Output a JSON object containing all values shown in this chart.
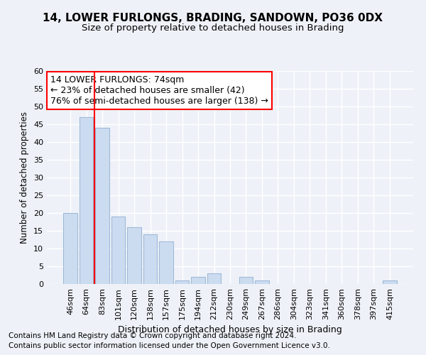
{
  "title1": "14, LOWER FURLONGS, BRADING, SANDOWN, PO36 0DX",
  "title2": "Size of property relative to detached houses in Brading",
  "xlabel": "Distribution of detached houses by size in Brading",
  "ylabel": "Number of detached properties",
  "categories": [
    "46sqm",
    "64sqm",
    "83sqm",
    "101sqm",
    "120sqm",
    "138sqm",
    "157sqm",
    "175sqm",
    "194sqm",
    "212sqm",
    "230sqm",
    "249sqm",
    "267sqm",
    "286sqm",
    "304sqm",
    "323sqm",
    "341sqm",
    "360sqm",
    "378sqm",
    "397sqm",
    "415sqm"
  ],
  "values": [
    20,
    47,
    44,
    19,
    16,
    14,
    12,
    1,
    2,
    3,
    0,
    2,
    1,
    0,
    0,
    0,
    0,
    0,
    0,
    0,
    1
  ],
  "bar_color": "#ccdcf0",
  "bar_edge_color": "#a0b8d8",
  "red_line_x": 1.5,
  "annotation_line1": "14 LOWER FURLONGS: 74sqm",
  "annotation_line2": "← 23% of detached houses are smaller (42)",
  "annotation_line3": "76% of semi-detached houses are larger (138) →",
  "annotation_box_color": "white",
  "annotation_box_edge": "red",
  "ylim": [
    0,
    60
  ],
  "yticks": [
    0,
    5,
    10,
    15,
    20,
    25,
    30,
    35,
    40,
    45,
    50,
    55,
    60
  ],
  "footer1": "Contains HM Land Registry data © Crown copyright and database right 2024.",
  "footer2": "Contains public sector information licensed under the Open Government Licence v3.0.",
  "bg_color": "#eef2f8",
  "plot_bg_color": "#eef2f8",
  "grid_color": "#ffffff",
  "title1_fontsize": 11,
  "title2_fontsize": 9.5,
  "xlabel_fontsize": 9,
  "ylabel_fontsize": 8.5,
  "tick_fontsize": 8,
  "annotation_fontsize": 9,
  "footer_fontsize": 7.5
}
